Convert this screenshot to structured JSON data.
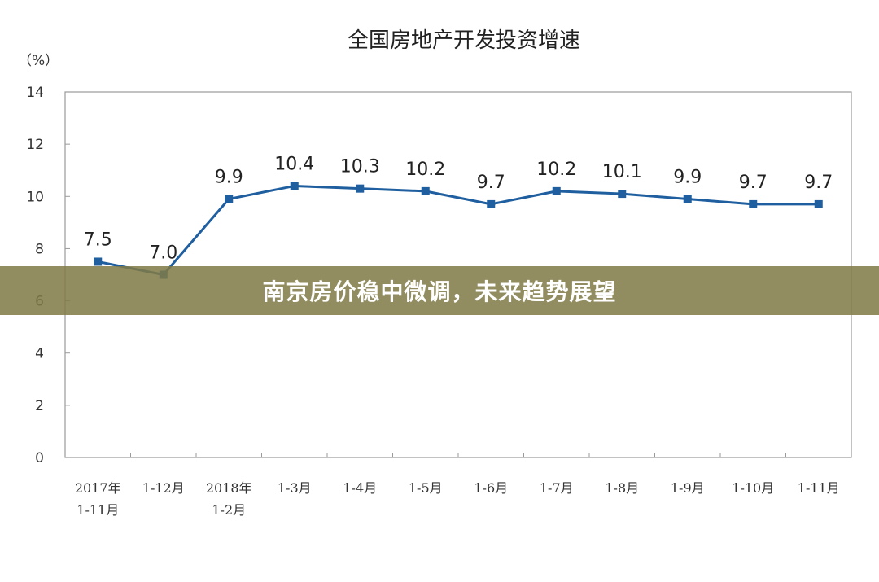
{
  "chart_data": {
    "type": "line",
    "title": "全国房地产开发投资增速",
    "ylabel": "（%）",
    "xlabel": "",
    "ylim": [
      0,
      14
    ],
    "yticks": [
      0,
      2,
      4,
      6,
      8,
      10,
      12,
      14
    ],
    "categories": [
      [
        "2017年",
        "1-11月"
      ],
      [
        "1-12月"
      ],
      [
        "2018年",
        "1-2月"
      ],
      [
        "1-3月"
      ],
      [
        "1-4月"
      ],
      [
        "1-5月"
      ],
      [
        "1-6月"
      ],
      [
        "1-7月"
      ],
      [
        "1-8月"
      ],
      [
        "1-9月"
      ],
      [
        "1-10月"
      ],
      [
        "1-11月"
      ]
    ],
    "series": [
      {
        "values": [
          7.5,
          7.0,
          9.9,
          10.4,
          10.3,
          10.2,
          9.7,
          10.2,
          10.1,
          9.9,
          9.7,
          9.7
        ],
        "labels": [
          "7.5",
          "7.0",
          "9.9",
          "10.4",
          "10.3",
          "10.2",
          "9.7",
          "10.2",
          "10.1",
          "9.9",
          "9.7",
          "9.7"
        ],
        "color": "#1f5fa0"
      }
    ],
    "grid": false,
    "legend": "none"
  },
  "overlay": {
    "caption": "南京房价稳中微调，未来趋势展望",
    "background": "#807a46"
  }
}
